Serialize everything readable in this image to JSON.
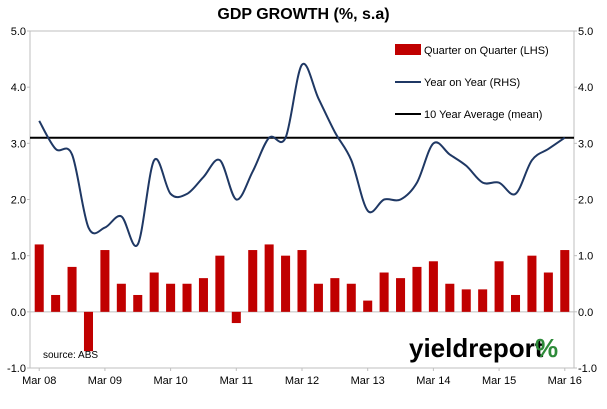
{
  "title": "GDP GROWTH (%, s.a)",
  "source": "source: ABS",
  "logo": {
    "word": "yieldreport",
    "symbol": "%"
  },
  "chart_data": {
    "type": "bar+line",
    "title": "GDP GROWTH (%, s.a)",
    "ylim_left": [
      -1.0,
      5.0
    ],
    "ylim_right": [
      -1.0,
      5.0
    ],
    "y_ticks_left": [
      "5.0",
      "4.0",
      "3.0",
      "2.0",
      "1.0",
      "0.0",
      "-1.0"
    ],
    "y_ticks_right": [
      "5.0",
      "4.0",
      "3.0",
      "2.0",
      "1.0",
      "0.0",
      "-1.0"
    ],
    "x_tick_labels": [
      "Mar 08",
      "Mar 09",
      "Mar 10",
      "Mar 11",
      "Mar 12",
      "Mar 13",
      "Mar 14",
      "Mar 15",
      "Mar 16"
    ],
    "categories": [
      "Mar 08",
      "Jun 08",
      "Sep 08",
      "Dec 08",
      "Mar 09",
      "Jun 09",
      "Sep 09",
      "Dec 09",
      "Mar 10",
      "Jun 10",
      "Sep 10",
      "Dec 10",
      "Mar 11",
      "Jun 11",
      "Sep 11",
      "Dec 11",
      "Mar 12",
      "Jun 12",
      "Sep 12",
      "Dec 12",
      "Mar 13",
      "Jun 13",
      "Sep 13",
      "Dec 13",
      "Mar 14",
      "Jun 14",
      "Sep 14",
      "Dec 14",
      "Mar 15",
      "Jun 15",
      "Sep 15",
      "Dec 15",
      "Mar 16"
    ],
    "series": [
      {
        "name": "Quarter on Quarter (LHS)",
        "kind": "bar",
        "axis": "left",
        "color": "#c00000",
        "values": [
          1.2,
          0.3,
          0.8,
          -0.7,
          1.1,
          0.5,
          0.3,
          0.7,
          0.5,
          0.5,
          0.6,
          1.0,
          -0.2,
          1.1,
          1.2,
          1.0,
          1.1,
          0.5,
          0.6,
          0.5,
          0.2,
          0.7,
          0.6,
          0.8,
          0.9,
          0.5,
          0.4,
          0.4,
          0.9,
          0.3,
          1.0,
          0.7,
          1.1
        ]
      },
      {
        "name": "Year on Year (RHS)",
        "kind": "line",
        "axis": "right",
        "color": "#1f3864",
        "values": [
          3.4,
          2.9,
          2.8,
          1.5,
          1.5,
          1.7,
          1.2,
          2.7,
          2.1,
          2.1,
          2.4,
          2.7,
          2.0,
          2.5,
          3.1,
          3.1,
          4.4,
          3.8,
          3.2,
          2.7,
          1.8,
          2.0,
          2.0,
          2.3,
          3.0,
          2.8,
          2.6,
          2.3,
          2.3,
          2.1,
          2.7,
          2.9,
          3.1
        ]
      },
      {
        "name": "10 Year Average (mean)",
        "kind": "hline",
        "axis": "right",
        "color": "#000000",
        "value": 3.1
      }
    ],
    "legend_position": "top-right",
    "grid": false
  }
}
